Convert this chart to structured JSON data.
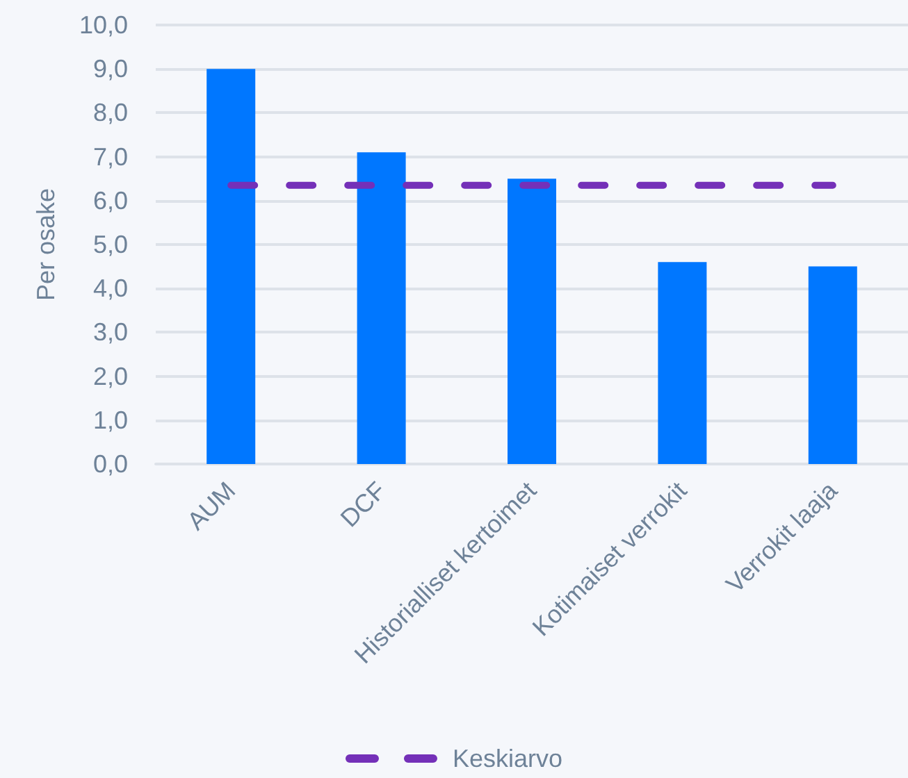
{
  "chart_data": {
    "type": "bar",
    "categories": [
      "AUM",
      "DCF",
      "Historialliset kertoimet",
      "Kotimaiset verrokit",
      "Verrokit laaja"
    ],
    "series": [
      {
        "color": "#0077ff",
        "values": [
          9.0,
          7.1,
          6.5,
          4.6,
          4.5
        ]
      },
      {
        "type": "line",
        "name": "Keskiarvo",
        "color": "#7430b8",
        "values": [
          6.35,
          6.35,
          6.35,
          6.35,
          6.35
        ],
        "line_style": "dashed",
        "marker": "none"
      }
    ],
    "ylabel": "Per osake",
    "ylim": [
      0,
      10
    ],
    "yticks": [
      {
        "value": 0,
        "label": "0,0"
      },
      {
        "value": 1,
        "label": "1,0"
      },
      {
        "value": 2,
        "label": "2,0"
      },
      {
        "value": 3,
        "label": "3,0"
      },
      {
        "value": 4,
        "label": "4,0"
      },
      {
        "value": 5,
        "label": "5,0"
      },
      {
        "value": 6,
        "label": "6,0"
      },
      {
        "value": 7,
        "label": "7,0"
      },
      {
        "value": 8,
        "label": "8,0"
      },
      {
        "value": 9,
        "label": "9,0"
      },
      {
        "value": 10,
        "label": "10,0"
      }
    ],
    "grid": "y",
    "legend": "bottom"
  }
}
